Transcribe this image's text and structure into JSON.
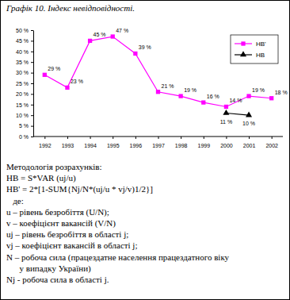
{
  "chart_data": {
    "type": "line",
    "title": "Графік 10. Індекс невідповідності.",
    "categories": [
      "1992",
      "1993",
      "1994",
      "1995",
      "1996",
      "1997",
      "1998",
      "1999",
      "2000",
      "2001",
      "2002"
    ],
    "series": [
      {
        "name": "НВ'",
        "color": "#ff00ff",
        "marker": "square",
        "line_style": "solid",
        "values": [
          29,
          23,
          45,
          47,
          39,
          21,
          19,
          16,
          14,
          19,
          18
        ],
        "value_labels": [
          "29 %",
          "23 %",
          "45 %",
          "47 %",
          "39 %",
          "21 %",
          "19 %",
          "16 %",
          "14 %",
          "19 %",
          "18 %"
        ]
      },
      {
        "name": "НВ",
        "color": "#000000",
        "marker": "triangle",
        "line_style": "solid",
        "values": [
          null,
          null,
          null,
          null,
          null,
          null,
          null,
          null,
          11,
          10,
          null
        ],
        "value_labels": [
          null,
          null,
          null,
          null,
          null,
          null,
          null,
          null,
          "11 %",
          "10 %",
          null
        ]
      }
    ],
    "ylim": [
      0,
      50
    ],
    "yticks": [
      {
        "value": 0,
        "label": "0 %"
      },
      {
        "value": 5,
        "label": "5 %"
      },
      {
        "value": 10,
        "label": "10 %"
      },
      {
        "value": 15,
        "label": "15 %"
      },
      {
        "value": 20,
        "label": "20 %"
      },
      {
        "value": 25,
        "label": "25 %"
      },
      {
        "value": 30,
        "label": "30 %"
      },
      {
        "value": 35,
        "label": "35 %"
      },
      {
        "value": 40,
        "label": "40 %"
      },
      {
        "value": 45,
        "label": "45 %"
      },
      {
        "value": 50,
        "label": "50 %"
      }
    ],
    "grid": false,
    "data_labels": true,
    "legend": "top-right",
    "annotations": [
      "Методологія розрахунків:",
      "НВ = S*VAR (uj/u)",
      "НВ' = 2*[1-SUM{Nj/N*(uj/u * vj/v)1/2}]",
      "   де:",
      "u – рівень безробіття (U/N);",
      "v – коефіцієнт вакансій (V/N)",
      "uj – рівень безробіття в області j;",
      "vj – коефіцієнт вакансій в області j;",
      "N – робоча сила (працездатне населення працездатного віку",
      "      у випадку України)",
      "Nj - робоча сила в області j."
    ]
  }
}
